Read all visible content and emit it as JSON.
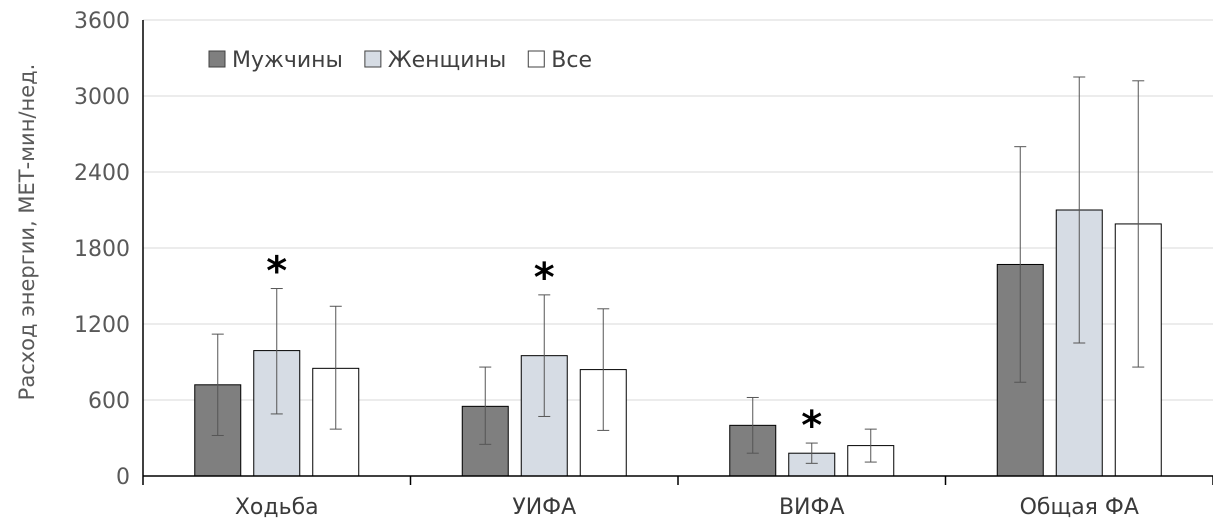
{
  "chart_data": {
    "type": "bar",
    "ylabel": "Расход энергии, МЕТ-мин/нед.",
    "xlabel": "",
    "ylim": [
      0,
      3600
    ],
    "yticks": [
      "0",
      "600",
      "1200",
      "1800",
      "2400",
      "3000",
      "3600"
    ],
    "categories": [
      "Ходьба",
      "УИФА",
      "ВИФА",
      "Общая ФА"
    ],
    "grid": true,
    "legend_position": "top-left",
    "significance_marker": "*",
    "significant": [
      [
        false,
        true,
        false
      ],
      [
        false,
        true,
        false
      ],
      [
        false,
        true,
        false
      ],
      [
        false,
        false,
        false
      ]
    ],
    "series": [
      {
        "name": "Мужчины",
        "color": "#7f7f7f",
        "values": [
          720,
          550,
          400,
          1670
        ],
        "error_low": [
          320,
          250,
          180,
          740
        ],
        "error_high": [
          1120,
          860,
          620,
          2600
        ]
      },
      {
        "name": "Женщины",
        "color": "#d6dce4",
        "values": [
          990,
          950,
          180,
          2100
        ],
        "error_low": [
          490,
          470,
          100,
          1050
        ],
        "error_high": [
          1480,
          1430,
          260,
          3150
        ]
      },
      {
        "name": "Все",
        "color": "#ffffff",
        "values": [
          850,
          840,
          240,
          1990
        ],
        "error_low": [
          370,
          360,
          110,
          860
        ],
        "error_high": [
          1340,
          1320,
          370,
          3120
        ]
      }
    ]
  }
}
